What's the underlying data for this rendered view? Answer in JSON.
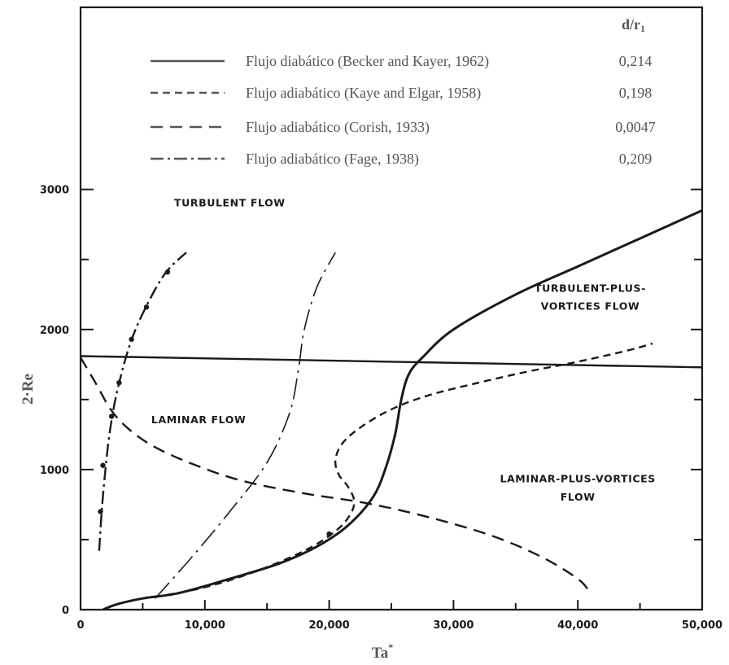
{
  "chart_data": {
    "type": "line",
    "xlabel": "Ta",
    "xlabel_sup": "*",
    "ylabel": "2·Re",
    "xlim": [
      0,
      50000
    ],
    "ylim": [
      0,
      3000
    ],
    "grid": false,
    "legend_position": "top-right",
    "x_ticks": [
      {
        "value": 0,
        "label": "0"
      },
      {
        "value": 10000,
        "label": "10,000"
      },
      {
        "value": 20000,
        "label": "20,000"
      },
      {
        "value": 30000,
        "label": "30,000"
      },
      {
        "value": 40000,
        "label": "40,000"
      },
      {
        "value": 50000,
        "label": "50,000"
      }
    ],
    "y_ticks": [
      {
        "value": 0,
        "label": "0"
      },
      {
        "value": 1000,
        "label": "1000"
      },
      {
        "value": 2000,
        "label": "2000"
      },
      {
        "value": 3000,
        "label": "3000"
      }
    ],
    "legend_header": "d/r",
    "legend_header_sub": "1",
    "series": [
      {
        "name": "Flujo diabático (Becker and Kayer, 1962)",
        "ratio": "0,214",
        "style": "solid",
        "points": [
          [
            1800,
            0
          ],
          [
            3000,
            40
          ],
          [
            5000,
            80
          ],
          [
            8000,
            120
          ],
          [
            12000,
            220
          ],
          [
            16000,
            330
          ],
          [
            19000,
            450
          ],
          [
            21500,
            600
          ],
          [
            23500,
            800
          ],
          [
            24500,
            1000
          ],
          [
            25300,
            1250
          ],
          [
            25800,
            1500
          ],
          [
            26400,
            1680
          ],
          [
            27500,
            1800
          ],
          [
            30000,
            2000
          ],
          [
            35000,
            2250
          ],
          [
            40000,
            2450
          ],
          [
            45000,
            2650
          ],
          [
            50000,
            2850
          ]
        ]
      },
      {
        "name": "Flujo adiabático (Kaye and Elgar, 1958)",
        "ratio": "0,198",
        "style": "short-dash",
        "points": [
          [
            6000,
            90
          ],
          [
            10000,
            160
          ],
          [
            14000,
            270
          ],
          [
            18000,
            420
          ],
          [
            20500,
            560
          ],
          [
            21700,
            680
          ],
          [
            22000,
            780
          ],
          [
            21500,
            880
          ],
          [
            20800,
            960
          ],
          [
            20500,
            1060
          ],
          [
            21000,
            1180
          ],
          [
            22500,
            1300
          ],
          [
            25000,
            1430
          ],
          [
            28000,
            1530
          ],
          [
            32000,
            1620
          ],
          [
            36000,
            1700
          ],
          [
            40000,
            1770
          ],
          [
            44000,
            1850
          ],
          [
            46000,
            1900
          ]
        ]
      },
      {
        "name": "Flujo adiabático (Corish, 1933)",
        "ratio": "0,0047",
        "style": "long-dash",
        "points": [
          [
            0,
            1800
          ],
          [
            1200,
            1620
          ],
          [
            2500,
            1420
          ],
          [
            4000,
            1280
          ],
          [
            6000,
            1160
          ],
          [
            9000,
            1040
          ],
          [
            13000,
            920
          ],
          [
            18000,
            830
          ],
          [
            23000,
            760
          ],
          [
            28000,
            660
          ],
          [
            33000,
            530
          ],
          [
            37000,
            380
          ],
          [
            40000,
            220
          ],
          [
            41000,
            120
          ]
        ]
      },
      {
        "name": "Flujo adiabático (Fage, 1938)",
        "ratio": "0,209",
        "style": "dash-dot",
        "points": [
          [
            1500,
            420
          ],
          [
            1700,
            700
          ],
          [
            2000,
            1000
          ],
          [
            2400,
            1300
          ],
          [
            3000,
            1580
          ],
          [
            4000,
            1900
          ],
          [
            5200,
            2150
          ],
          [
            6800,
            2400
          ],
          [
            8500,
            2550
          ]
        ]
      }
    ],
    "additional_lines": [
      {
        "style": "solid",
        "points": [
          [
            0,
            1810
          ],
          [
            50000,
            1730
          ]
        ]
      },
      {
        "style": "long-dash-dot",
        "points": [
          [
            6000,
            80
          ],
          [
            9000,
            380
          ],
          [
            12000,
            700
          ],
          [
            15000,
            1050
          ],
          [
            16800,
            1400
          ],
          [
            17500,
            1700
          ],
          [
            18000,
            2000
          ],
          [
            19000,
            2300
          ],
          [
            20500,
            2550
          ]
        ]
      }
    ],
    "markers": [
      [
        1600,
        700
      ],
      [
        1800,
        1030
      ],
      [
        2500,
        1380
      ],
      [
        3100,
        1620
      ],
      [
        4100,
        1930
      ],
      [
        5300,
        2160
      ],
      [
        7000,
        2410
      ],
      [
        20000,
        540
      ]
    ],
    "regions": [
      {
        "label": "TURBULENT FLOW",
        "x": 12000,
        "y": 2880
      },
      {
        "label": "LAMINAR FLOW",
        "x": 9500,
        "y": 1330
      },
      {
        "label": "TURBULENT-PLUS-",
        "x": 41000,
        "y": 2270
      },
      {
        "label": "VORTICES FLOW",
        "x": 41000,
        "y": 2140
      },
      {
        "label": "LAMINAR-PLUS-VORTICES",
        "x": 40000,
        "y": 910
      },
      {
        "label": "FLOW",
        "x": 40000,
        "y": 780
      }
    ]
  }
}
